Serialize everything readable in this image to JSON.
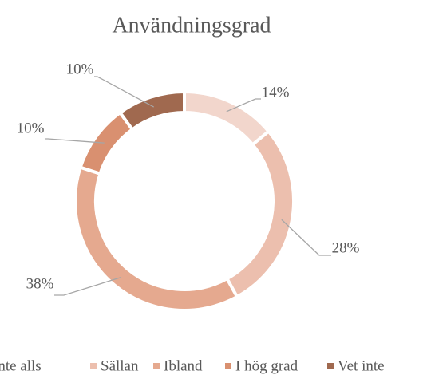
{
  "chart_data": {
    "type": "pie",
    "donut": true,
    "title": "Användningsgrad",
    "categories": [
      "Inte alls",
      "Sällan",
      "Ibland",
      "I hög grad",
      "Vet inte"
    ],
    "values": [
      14,
      28,
      38,
      10,
      10
    ],
    "value_labels": [
      "14%",
      "28%",
      "38%",
      "10%",
      "10%"
    ],
    "colors": [
      "#f2d6cc",
      "#ecbfae",
      "#e5a98f",
      "#d99070",
      "#a0694f"
    ],
    "legend": "bottom"
  }
}
